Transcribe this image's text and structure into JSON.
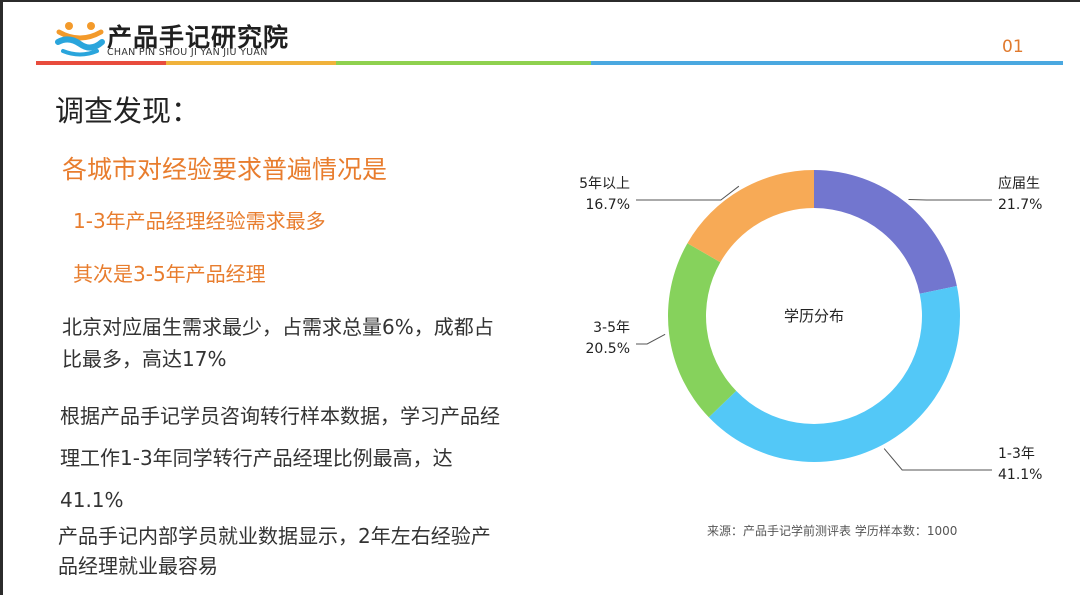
{
  "logo": {
    "cn": "产品手记研究院",
    "en": "CHAN PIN SHOU JI YAN JIU YUAN"
  },
  "page_number": "01",
  "heading": "调查发现：",
  "highlights": {
    "main": "各城市对经验要求普遍情况是",
    "sub1": "1-3年产品经理经验需求最多",
    "sub2": "其次是3-5年产品经理"
  },
  "paragraphs": {
    "p1": "北京对应届生需求最少，占需求总量6%，成都占比最多，高达17%",
    "p2": "根据产品手记学员咨询转行样本数据，学习产品经理工作1-3年同学转行产品经理比例最高，达41.1%",
    "p3": "产品手记内部学员就业数据显示，2年左右经验产品经理就业最容易"
  },
  "source_note": "来源：产品手记学前测评表  学历样本数：1000",
  "colors": {
    "accent": "#e87d2e",
    "rule": [
      "#e84c3d",
      "#f0b23b",
      "#8fd14f",
      "#4aa8e0"
    ]
  },
  "chart_data": {
    "type": "pie",
    "style": "donut",
    "center_label": "学历分布",
    "slices": [
      {
        "label": "应届生",
        "value": 21.7,
        "value_label": "21.7%",
        "color": "#7276cf"
      },
      {
        "label": "1-3年",
        "value": 41.1,
        "value_label": "41.1%",
        "color": "#53c8f7"
      },
      {
        "label": "3-5年",
        "value": 20.5,
        "value_label": "20.5%",
        "color": "#86d25c"
      },
      {
        "label": "5年以上",
        "value": 16.7,
        "value_label": "16.7%",
        "color": "#f7aa56"
      }
    ]
  }
}
